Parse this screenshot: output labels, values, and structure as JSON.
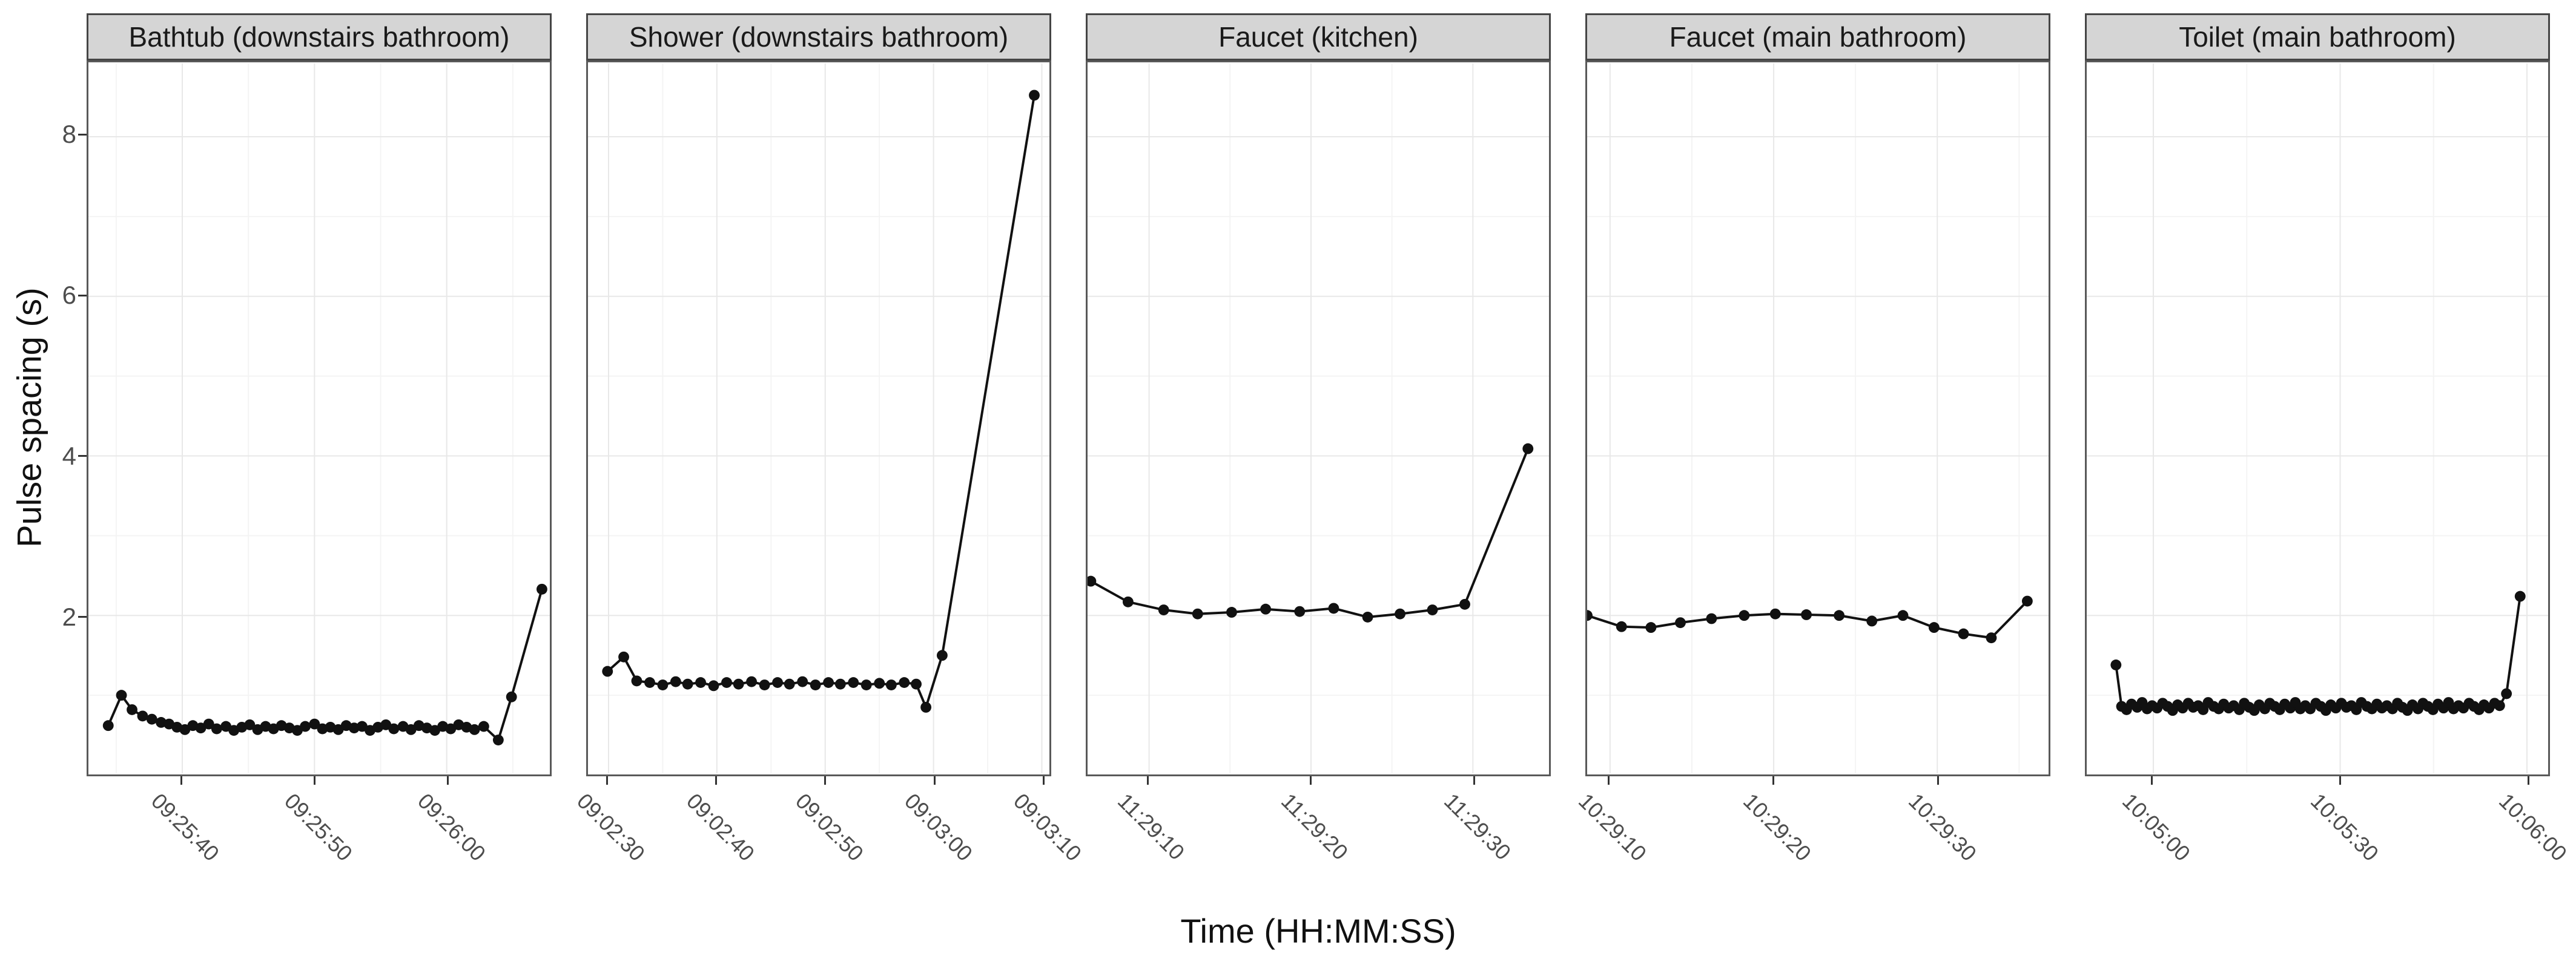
{
  "chart_data": {
    "type": "line",
    "xlabel": "Time (HH:MM:SS)",
    "ylabel": "Pulse spacing (s)",
    "layout_hint": "5 horizontal facet panels, shared y axis, grid on, no legend, black points joined by black lines, x tick labels rotated 45 degrees",
    "y_axis": {
      "domain": [
        0.02,
        8.92
      ],
      "ticks": [
        {
          "v": 2,
          "label": "2"
        },
        {
          "v": 4,
          "label": "4"
        },
        {
          "v": 6,
          "label": "6"
        },
        {
          "v": 8,
          "label": "8"
        }
      ],
      "minor": [
        1,
        3,
        5,
        7
      ]
    },
    "panels": [
      {
        "title": "Bathtub (downstairs bathroom)",
        "x_domain": [
          32.9,
          67.8
        ],
        "x_ticks": [
          {
            "t": 40,
            "label": "09:25:40"
          },
          {
            "t": 50,
            "label": "09:25:50"
          },
          {
            "t": 60,
            "label": "09:26:00"
          }
        ],
        "x_minor": [
          35,
          45,
          55,
          65
        ],
        "points": [
          [
            34.4,
            0.62
          ],
          [
            35.4,
            1.0
          ],
          [
            36.2,
            0.82
          ],
          [
            37.0,
            0.74
          ],
          [
            37.7,
            0.7
          ],
          [
            38.4,
            0.66
          ],
          [
            39.0,
            0.64
          ],
          [
            39.6,
            0.6
          ],
          [
            40.2,
            0.57
          ],
          [
            40.8,
            0.62
          ],
          [
            41.4,
            0.59
          ],
          [
            42.0,
            0.64
          ],
          [
            42.6,
            0.58
          ],
          [
            43.3,
            0.61
          ],
          [
            43.9,
            0.56
          ],
          [
            44.5,
            0.6
          ],
          [
            45.1,
            0.63
          ],
          [
            45.7,
            0.57
          ],
          [
            46.3,
            0.61
          ],
          [
            46.9,
            0.58
          ],
          [
            47.5,
            0.62
          ],
          [
            48.1,
            0.59
          ],
          [
            48.7,
            0.56
          ],
          [
            49.3,
            0.61
          ],
          [
            50.0,
            0.64
          ],
          [
            50.6,
            0.58
          ],
          [
            51.2,
            0.6
          ],
          [
            51.8,
            0.57
          ],
          [
            52.4,
            0.62
          ],
          [
            53.0,
            0.59
          ],
          [
            53.6,
            0.61
          ],
          [
            54.2,
            0.56
          ],
          [
            54.8,
            0.6
          ],
          [
            55.4,
            0.63
          ],
          [
            56.0,
            0.58
          ],
          [
            56.7,
            0.61
          ],
          [
            57.3,
            0.57
          ],
          [
            57.9,
            0.62
          ],
          [
            58.5,
            0.59
          ],
          [
            59.1,
            0.56
          ],
          [
            59.7,
            0.61
          ],
          [
            60.3,
            0.58
          ],
          [
            60.9,
            0.63
          ],
          [
            61.5,
            0.6
          ],
          [
            62.1,
            0.57
          ],
          [
            62.8,
            0.61
          ],
          [
            63.9,
            0.44
          ],
          [
            64.9,
            0.98
          ],
          [
            67.2,
            2.33
          ]
        ]
      },
      {
        "title": "Shower (downstairs bathroom)",
        "x_domain": [
          28.1,
          70.7
        ],
        "x_ticks": [
          {
            "t": 30,
            "label": "09:02:30"
          },
          {
            "t": 40,
            "label": "09:02:40"
          },
          {
            "t": 50,
            "label": "09:02:50"
          },
          {
            "t": 60,
            "label": "09:03:00"
          },
          {
            "t": 70,
            "label": "09:03:10"
          }
        ],
        "x_minor": [
          35,
          45,
          55,
          65
        ],
        "points": [
          [
            29.9,
            1.3
          ],
          [
            31.4,
            1.48
          ],
          [
            32.6,
            1.18
          ],
          [
            33.8,
            1.16
          ],
          [
            35.0,
            1.13
          ],
          [
            36.2,
            1.17
          ],
          [
            37.3,
            1.14
          ],
          [
            38.5,
            1.16
          ],
          [
            39.7,
            1.12
          ],
          [
            40.9,
            1.16
          ],
          [
            42.0,
            1.14
          ],
          [
            43.2,
            1.17
          ],
          [
            44.4,
            1.13
          ],
          [
            45.6,
            1.16
          ],
          [
            46.7,
            1.14
          ],
          [
            47.9,
            1.17
          ],
          [
            49.1,
            1.13
          ],
          [
            50.3,
            1.16
          ],
          [
            51.4,
            1.14
          ],
          [
            52.6,
            1.16
          ],
          [
            53.8,
            1.13
          ],
          [
            55.0,
            1.15
          ],
          [
            56.1,
            1.13
          ],
          [
            57.3,
            1.16
          ],
          [
            58.4,
            1.14
          ],
          [
            59.3,
            0.85
          ],
          [
            60.8,
            1.5
          ],
          [
            69.3,
            8.52
          ]
        ]
      },
      {
        "title": "Faucet (kitchen)",
        "x_domain": [
          6.2,
          34.7
        ],
        "x_ticks": [
          {
            "t": 10,
            "label": "11:29:10"
          },
          {
            "t": 20,
            "label": "11:29:20"
          },
          {
            "t": 30,
            "label": "11:29:30"
          }
        ],
        "x_minor": [
          15,
          25
        ],
        "points": [
          [
            6.4,
            2.43
          ],
          [
            8.7,
            2.17
          ],
          [
            10.9,
            2.07
          ],
          [
            13.0,
            2.02
          ],
          [
            15.1,
            2.04
          ],
          [
            17.2,
            2.08
          ],
          [
            19.3,
            2.05
          ],
          [
            21.4,
            2.09
          ],
          [
            23.5,
            1.98
          ],
          [
            25.5,
            2.02
          ],
          [
            27.5,
            2.07
          ],
          [
            29.5,
            2.14
          ],
          [
            33.4,
            4.09
          ]
        ]
      },
      {
        "title": "Faucet (main bathroom)",
        "x_domain": [
          8.6,
          36.8
        ],
        "x_ticks": [
          {
            "t": 10,
            "label": "10:29:10"
          },
          {
            "t": 20,
            "label": "10:29:20"
          },
          {
            "t": 30,
            "label": "10:29:30"
          }
        ],
        "x_minor": [
          15,
          25,
          35
        ],
        "points": [
          [
            8.6,
            2.0
          ],
          [
            10.7,
            1.86
          ],
          [
            12.5,
            1.85
          ],
          [
            14.3,
            1.91
          ],
          [
            16.2,
            1.96
          ],
          [
            18.2,
            2.0
          ],
          [
            20.1,
            2.02
          ],
          [
            22.0,
            2.01
          ],
          [
            24.0,
            2.0
          ],
          [
            26.0,
            1.93
          ],
          [
            27.9,
            2.0
          ],
          [
            29.8,
            1.85
          ],
          [
            31.6,
            1.77
          ],
          [
            33.3,
            1.72
          ],
          [
            35.5,
            2.18
          ]
        ]
      },
      {
        "title": "Toilet (main bathroom)",
        "x_domain": [
          49.3,
          123.4
        ],
        "x_ticks": [
          {
            "t": 60,
            "label": "10:05:00"
          },
          {
            "t": 90,
            "label": "10:05:30"
          },
          {
            "t": 120,
            "label": "10:06:00"
          }
        ],
        "x_minor": [
          75,
          105
        ],
        "points": [
          [
            54.0,
            1.38
          ],
          [
            54.9,
            0.86
          ],
          [
            55.7,
            0.82
          ],
          [
            56.5,
            0.89
          ],
          [
            57.4,
            0.85
          ],
          [
            58.2,
            0.91
          ],
          [
            59.0,
            0.83
          ],
          [
            59.8,
            0.87
          ],
          [
            60.6,
            0.84
          ],
          [
            61.5,
            0.9
          ],
          [
            62.3,
            0.86
          ],
          [
            63.1,
            0.81
          ],
          [
            63.9,
            0.88
          ],
          [
            64.7,
            0.84
          ],
          [
            65.6,
            0.9
          ],
          [
            66.4,
            0.85
          ],
          [
            67.2,
            0.87
          ],
          [
            68.0,
            0.82
          ],
          [
            68.8,
            0.91
          ],
          [
            69.7,
            0.86
          ],
          [
            70.5,
            0.83
          ],
          [
            71.3,
            0.89
          ],
          [
            72.1,
            0.84
          ],
          [
            72.9,
            0.87
          ],
          [
            73.8,
            0.82
          ],
          [
            74.6,
            0.9
          ],
          [
            75.4,
            0.85
          ],
          [
            76.2,
            0.81
          ],
          [
            77.0,
            0.88
          ],
          [
            77.9,
            0.83
          ],
          [
            78.7,
            0.9
          ],
          [
            79.5,
            0.86
          ],
          [
            80.3,
            0.82
          ],
          [
            81.1,
            0.89
          ],
          [
            82.0,
            0.84
          ],
          [
            82.8,
            0.91
          ],
          [
            83.6,
            0.83
          ],
          [
            84.4,
            0.87
          ],
          [
            85.2,
            0.83
          ],
          [
            86.1,
            0.9
          ],
          [
            86.9,
            0.86
          ],
          [
            87.7,
            0.81
          ],
          [
            88.5,
            0.88
          ],
          [
            89.3,
            0.84
          ],
          [
            90.2,
            0.9
          ],
          [
            91.0,
            0.85
          ],
          [
            91.8,
            0.87
          ],
          [
            92.6,
            0.82
          ],
          [
            93.4,
            0.91
          ],
          [
            94.3,
            0.86
          ],
          [
            95.1,
            0.83
          ],
          [
            95.9,
            0.89
          ],
          [
            96.7,
            0.84
          ],
          [
            97.5,
            0.87
          ],
          [
            98.4,
            0.83
          ],
          [
            99.2,
            0.9
          ],
          [
            100.0,
            0.85
          ],
          [
            100.8,
            0.81
          ],
          [
            101.6,
            0.88
          ],
          [
            102.5,
            0.83
          ],
          [
            103.3,
            0.9
          ],
          [
            104.1,
            0.86
          ],
          [
            104.9,
            0.82
          ],
          [
            105.7,
            0.89
          ],
          [
            106.6,
            0.84
          ],
          [
            107.4,
            0.91
          ],
          [
            108.2,
            0.83
          ],
          [
            109.0,
            0.87
          ],
          [
            109.8,
            0.84
          ],
          [
            110.7,
            0.9
          ],
          [
            111.5,
            0.86
          ],
          [
            112.3,
            0.82
          ],
          [
            113.1,
            0.88
          ],
          [
            113.9,
            0.84
          ],
          [
            114.8,
            0.9
          ],
          [
            115.6,
            0.87
          ],
          [
            116.7,
            1.02
          ],
          [
            118.9,
            2.24
          ]
        ]
      }
    ],
    "style": {
      "background": "#ffffff",
      "strip_fill": "#d5d5d5",
      "strip_border": "#454545",
      "panel_border": "#595959",
      "grid_major": "#e8e8e8",
      "grid_minor": "#f4f4f4",
      "data_color": "#111111",
      "tick_mark_color": "#333333",
      "tick_label_color": "#4d4d4d",
      "axis_title_color": "#111111"
    }
  }
}
